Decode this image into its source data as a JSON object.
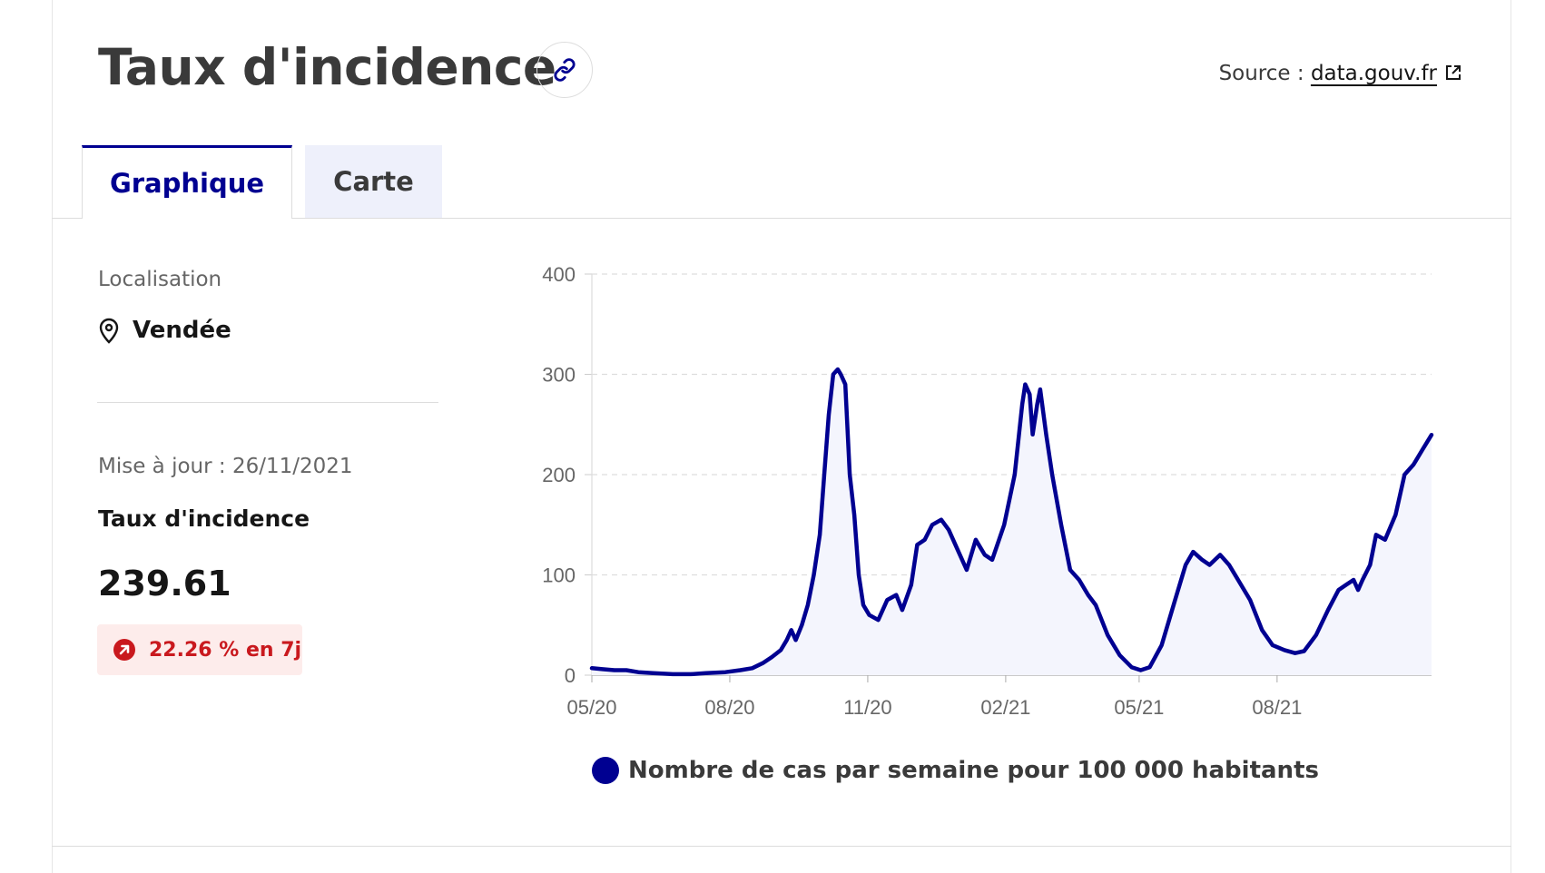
{
  "header": {
    "title": "Taux d'incidence",
    "link_icon": "link-icon",
    "source_prefix": "Source : ",
    "source_link": "data.gouv.fr",
    "external_icon": "external-link-icon"
  },
  "tabs": [
    {
      "label": "Graphique",
      "active": true
    },
    {
      "label": "Carte",
      "active": false
    }
  ],
  "sidebar": {
    "location_label": "Localisation",
    "location_value": "Vendée",
    "location_icon": "map-pin-icon",
    "updated": "Mise à jour : 26/11/2021",
    "indicator_title": "Taux d'incidence",
    "value": "239.61",
    "trend": "22.26 % en 7j",
    "trend_icon": "arrow-up-right-icon",
    "trend_color": "#c9191e"
  },
  "colors": {
    "accent": "#000091",
    "fill": "#f4f5fd",
    "grid": "#dddddd"
  },
  "chart_data": {
    "type": "area",
    "title": "",
    "xlabel": "",
    "ylabel": "",
    "ylim": [
      0,
      400
    ],
    "yticks": [
      0,
      100,
      200,
      300,
      400
    ],
    "x_range": [
      "2020-05-15",
      "2021-11-26"
    ],
    "xticks": [
      {
        "date": "2020-05-15",
        "label": "05/20"
      },
      {
        "date": "2020-08-15",
        "label": "08/20"
      },
      {
        "date": "2020-11-15",
        "label": "11/20"
      },
      {
        "date": "2021-02-15",
        "label": "02/21"
      },
      {
        "date": "2021-05-15",
        "label": "05/21"
      },
      {
        "date": "2021-08-15",
        "label": "08/21"
      }
    ],
    "grid": true,
    "legend_position": "bottom",
    "series": [
      {
        "name": "Nombre de cas par semaine pour 100 000 habitants",
        "color": "#000091",
        "points": [
          [
            "2020-05-15",
            7
          ],
          [
            "2020-05-22",
            6
          ],
          [
            "2020-05-30",
            5
          ],
          [
            "2020-06-07",
            5
          ],
          [
            "2020-06-15",
            3
          ],
          [
            "2020-06-25",
            2
          ],
          [
            "2020-07-08",
            1
          ],
          [
            "2020-07-20",
            1
          ],
          [
            "2020-07-30",
            2
          ],
          [
            "2020-08-12",
            3
          ],
          [
            "2020-08-22",
            5
          ],
          [
            "2020-08-30",
            7
          ],
          [
            "2020-09-06",
            12
          ],
          [
            "2020-09-12",
            18
          ],
          [
            "2020-09-18",
            25
          ],
          [
            "2020-09-22",
            35
          ],
          [
            "2020-09-25",
            45
          ],
          [
            "2020-09-28",
            35
          ],
          [
            "2020-10-02",
            50
          ],
          [
            "2020-10-06",
            70
          ],
          [
            "2020-10-10",
            100
          ],
          [
            "2020-10-14",
            140
          ],
          [
            "2020-10-17",
            200
          ],
          [
            "2020-10-20",
            260
          ],
          [
            "2020-10-23",
            300
          ],
          [
            "2020-10-26",
            305
          ],
          [
            "2020-10-28",
            300
          ],
          [
            "2020-10-31",
            290
          ],
          [
            "2020-11-03",
            200
          ],
          [
            "2020-11-06",
            160
          ],
          [
            "2020-11-09",
            100
          ],
          [
            "2020-11-12",
            70
          ],
          [
            "2020-11-16",
            60
          ],
          [
            "2020-11-22",
            55
          ],
          [
            "2020-11-28",
            75
          ],
          [
            "2020-12-04",
            80
          ],
          [
            "2020-12-08",
            65
          ],
          [
            "2020-12-14",
            90
          ],
          [
            "2020-12-18",
            130
          ],
          [
            "2020-12-23",
            135
          ],
          [
            "2020-12-28",
            150
          ],
          [
            "2021-01-03",
            155
          ],
          [
            "2021-01-08",
            145
          ],
          [
            "2021-01-14",
            125
          ],
          [
            "2021-01-20",
            105
          ],
          [
            "2021-01-26",
            135
          ],
          [
            "2021-02-01",
            120
          ],
          [
            "2021-02-06",
            115
          ],
          [
            "2021-02-14",
            150
          ],
          [
            "2021-02-21",
            200
          ],
          [
            "2021-02-26",
            270
          ],
          [
            "2021-02-28",
            290
          ],
          [
            "2021-03-03",
            280
          ],
          [
            "2021-03-05",
            240
          ],
          [
            "2021-03-08",
            270
          ],
          [
            "2021-03-10",
            285
          ],
          [
            "2021-03-14",
            240
          ],
          [
            "2021-03-18",
            200
          ],
          [
            "2021-03-24",
            150
          ],
          [
            "2021-03-30",
            105
          ],
          [
            "2021-04-05",
            95
          ],
          [
            "2021-04-11",
            80
          ],
          [
            "2021-04-16",
            70
          ],
          [
            "2021-04-24",
            40
          ],
          [
            "2021-05-02",
            20
          ],
          [
            "2021-05-10",
            8
          ],
          [
            "2021-05-16",
            5
          ],
          [
            "2021-05-22",
            8
          ],
          [
            "2021-05-30",
            30
          ],
          [
            "2021-06-08",
            75
          ],
          [
            "2021-06-15",
            110
          ],
          [
            "2021-06-20",
            123
          ],
          [
            "2021-06-26",
            115
          ],
          [
            "2021-07-01",
            110
          ],
          [
            "2021-07-08",
            120
          ],
          [
            "2021-07-14",
            110
          ],
          [
            "2021-07-20",
            95
          ],
          [
            "2021-07-28",
            75
          ],
          [
            "2021-08-05",
            45
          ],
          [
            "2021-08-12",
            30
          ],
          [
            "2021-08-20",
            25
          ],
          [
            "2021-08-27",
            22
          ],
          [
            "2021-09-02",
            24
          ],
          [
            "2021-09-10",
            40
          ],
          [
            "2021-09-18",
            65
          ],
          [
            "2021-09-25",
            85
          ],
          [
            "2021-09-30",
            90
          ],
          [
            "2021-10-05",
            95
          ],
          [
            "2021-10-08",
            85
          ],
          [
            "2021-10-11",
            95
          ],
          [
            "2021-10-16",
            110
          ],
          [
            "2021-10-20",
            140
          ],
          [
            "2021-10-26",
            135
          ],
          [
            "2021-11-02",
            160
          ],
          [
            "2021-11-08",
            200
          ],
          [
            "2021-11-14",
            210
          ],
          [
            "2021-11-20",
            225
          ],
          [
            "2021-11-26",
            239.61
          ]
        ]
      }
    ]
  }
}
